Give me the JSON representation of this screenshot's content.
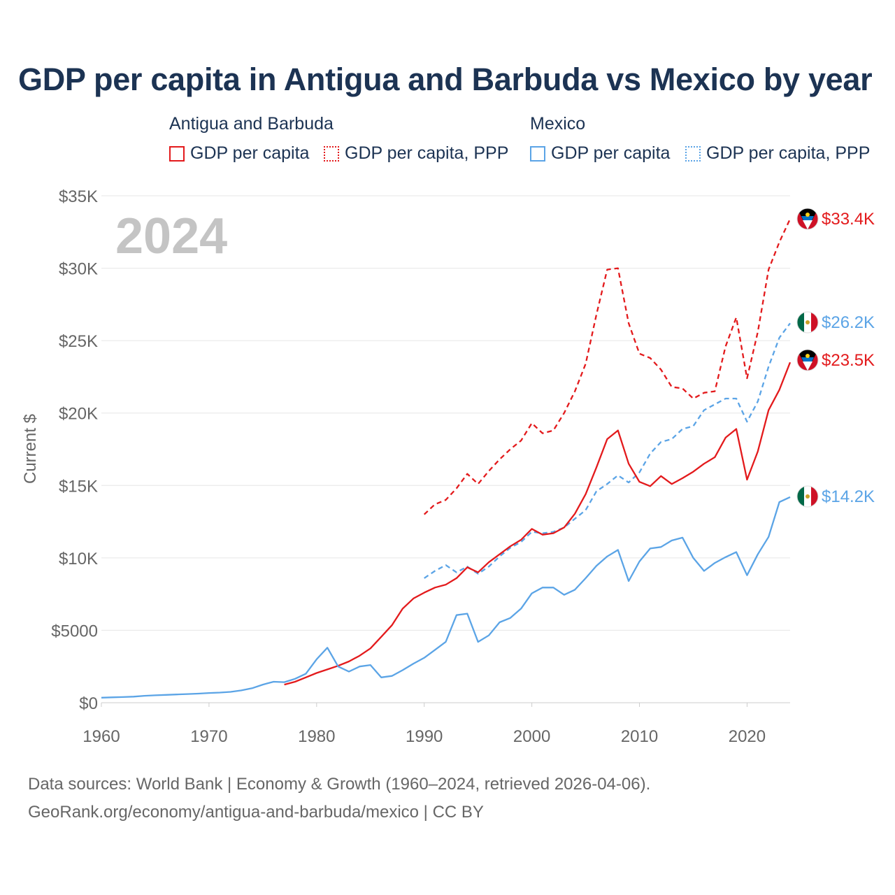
{
  "title": "GDP per capita in Antigua and Barbuda vs Mexico by year",
  "legend": {
    "groups": [
      {
        "name": "Antigua and Barbuda",
        "items": [
          "GDP per capita",
          "GDP per capita, PPP"
        ]
      },
      {
        "name": "Mexico",
        "items": [
          "GDP per capita",
          "GDP per capita, PPP"
        ]
      }
    ]
  },
  "footer": {
    "line1": "Data sources: World Bank | Economy & Growth (1960–2024, retrieved 2026-04-06).",
    "line2": "GeoRank.org/economy/antigua-and-barbuda/mexico | CC BY"
  },
  "colors": {
    "antigua": "#e31a1c",
    "mexico": "#5ba4e6",
    "grid": "#e6e6e6",
    "axis_text": "#666666",
    "watermark": "#c4c4c4"
  },
  "chart_data": {
    "type": "line",
    "title": "GDP per capita in Antigua and Barbuda vs Mexico by year",
    "xlabel": "",
    "ylabel": "Current $",
    "xlim": [
      1960,
      2024
    ],
    "ylim": [
      0,
      35000
    ],
    "xticks": [
      1960,
      1970,
      1980,
      1990,
      2000,
      2010,
      2020
    ],
    "xtick_labels": [
      "1960",
      "1970",
      "1980",
      "1990",
      "2000",
      "2010",
      "2020"
    ],
    "yticks": [
      0,
      5000,
      10000,
      15000,
      20000,
      25000,
      30000,
      35000
    ],
    "ytick_labels": [
      "$0",
      "$5000",
      "$10K",
      "$15K",
      "$20K",
      "$25K",
      "$30K",
      "$35K"
    ],
    "year_label": "2024",
    "grid": true,
    "series": [
      {
        "name": "Antigua and Barbuda GDP per capita, PPP",
        "country": "antigua",
        "style": "dashed",
        "end_label": "$33.4K",
        "x": [
          1990,
          1991,
          1992,
          1993,
          1994,
          1995,
          1996,
          1997,
          1998,
          1999,
          2000,
          2001,
          2002,
          2003,
          2004,
          2005,
          2006,
          2007,
          2008,
          2009,
          2010,
          2011,
          2012,
          2013,
          2014,
          2015,
          2016,
          2017,
          2018,
          2019,
          2020,
          2021,
          2022,
          2023,
          2024
        ],
        "values": [
          13000,
          13700,
          14000,
          14800,
          15800,
          15100,
          16000,
          16800,
          17500,
          18100,
          19300,
          18600,
          18800,
          20000,
          21500,
          23400,
          26800,
          29900,
          30000,
          26200,
          24100,
          23800,
          23000,
          21800,
          21700,
          21000,
          21400,
          21500,
          24600,
          26600,
          22400,
          25600,
          29900,
          31800,
          33400
        ]
      },
      {
        "name": "Mexico GDP per capita, PPP",
        "country": "mexico",
        "style": "dashed",
        "end_label": "$26.2K",
        "x": [
          1990,
          1991,
          1992,
          1993,
          1994,
          1995,
          1996,
          1997,
          1998,
          1999,
          2000,
          2001,
          2002,
          2003,
          2004,
          2005,
          2006,
          2007,
          2008,
          2009,
          2010,
          2011,
          2012,
          2013,
          2014,
          2015,
          2016,
          2017,
          2018,
          2019,
          2020,
          2021,
          2022,
          2023,
          2024
        ],
        "values": [
          8600,
          9100,
          9500,
          9000,
          9400,
          8900,
          9400,
          10100,
          10700,
          11100,
          11800,
          11700,
          11800,
          12100,
          12700,
          13300,
          14600,
          15100,
          15700,
          15200,
          15900,
          17200,
          18000,
          18200,
          18900,
          19100,
          20200,
          20600,
          21000,
          21000,
          19400,
          20800,
          23200,
          25200,
          26200
        ]
      },
      {
        "name": "Antigua and Barbuda GDP per capita",
        "country": "antigua",
        "style": "solid",
        "end_label": "$23.5K",
        "x": [
          1977,
          1978,
          1979,
          1980,
          1981,
          1982,
          1983,
          1984,
          1985,
          1986,
          1987,
          1988,
          1989,
          1990,
          1991,
          1992,
          1993,
          1994,
          1995,
          1996,
          1997,
          1998,
          1999,
          2000,
          2001,
          2002,
          2003,
          2004,
          2005,
          2006,
          2007,
          2008,
          2009,
          2010,
          2011,
          2012,
          2013,
          2014,
          2015,
          2016,
          2017,
          2018,
          2019,
          2020,
          2021,
          2022,
          2023,
          2024
        ],
        "values": [
          1250,
          1450,
          1750,
          2050,
          2300,
          2550,
          2850,
          3250,
          3750,
          4550,
          5350,
          6500,
          7200,
          7600,
          7950,
          8150,
          8600,
          9350,
          9000,
          9700,
          10250,
          10800,
          11250,
          12000,
          11600,
          11700,
          12100,
          13050,
          14400,
          16250,
          18200,
          18800,
          16500,
          15250,
          14950,
          15650,
          15100,
          15500,
          15950,
          16500,
          16950,
          18300,
          18900,
          15400,
          17350,
          20200,
          21600,
          23500
        ]
      },
      {
        "name": "Mexico GDP per capita",
        "country": "mexico",
        "style": "solid",
        "end_label": "$14.2K",
        "x": [
          1960,
          1961,
          1962,
          1963,
          1964,
          1965,
          1966,
          1967,
          1968,
          1969,
          1970,
          1971,
          1972,
          1973,
          1974,
          1975,
          1976,
          1977,
          1978,
          1979,
          1980,
          1981,
          1982,
          1983,
          1984,
          1985,
          1986,
          1987,
          1988,
          1989,
          1990,
          1991,
          1992,
          1993,
          1994,
          1995,
          1996,
          1997,
          1998,
          1999,
          2000,
          2001,
          2002,
          2003,
          2004,
          2005,
          2006,
          2007,
          2008,
          2009,
          2010,
          2011,
          2012,
          2013,
          2014,
          2015,
          2016,
          2017,
          2018,
          2019,
          2020,
          2021,
          2022,
          2023,
          2024
        ],
        "values": [
          350,
          370,
          390,
          420,
          480,
          510,
          540,
          570,
          600,
          630,
          670,
          700,
          750,
          850,
          1000,
          1250,
          1450,
          1420,
          1650,
          2000,
          3000,
          3800,
          2500,
          2150,
          2500,
          2600,
          1750,
          1850,
          2250,
          2700,
          3100,
          3650,
          4200,
          6050,
          6150,
          4200,
          4650,
          5550,
          5850,
          6500,
          7550,
          7950,
          7950,
          7450,
          7800,
          8600,
          9450,
          10100,
          10550,
          8400,
          9750,
          10650,
          10750,
          11200,
          11400,
          10000,
          9100,
          9650,
          10050,
          10400,
          8800,
          10250,
          11450,
          13850,
          14200
        ]
      }
    ]
  }
}
